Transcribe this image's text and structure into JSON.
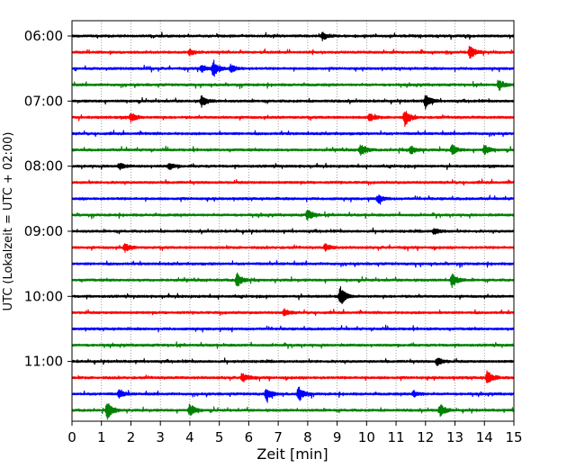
{
  "chart_data": {
    "type": "line",
    "title": "",
    "xlabel": "Zeit  [min]",
    "ylabel": "UTC (Lokalzeit = UTC + 02:00)",
    "xlim": [
      0,
      15
    ],
    "x_ticks": [
      "0",
      "1",
      "2",
      "3",
      "4",
      "5",
      "6",
      "7",
      "8",
      "9",
      "10",
      "11",
      "12",
      "13",
      "14",
      "15"
    ],
    "y_tick_labels": [
      "06:00",
      "07:00",
      "08:00",
      "09:00",
      "10:00",
      "11:00"
    ],
    "start_time": "06:00",
    "end_time": "12:00",
    "trace_interval_minutes": 15,
    "grid": "vertical dotted at each minute",
    "trace_color_cycle": [
      "#000000",
      "#ff0000",
      "#0000ff",
      "#008000"
    ],
    "traces": [
      {
        "time": "06:00",
        "color": "black",
        "events": [
          {
            "t": 8.5,
            "amp": 0.5
          }
        ]
      },
      {
        "time": "06:15",
        "color": "red",
        "events": [
          {
            "t": 4.0,
            "amp": 0.3
          },
          {
            "t": 13.5,
            "amp": 0.9
          }
        ]
      },
      {
        "time": "06:30",
        "color": "blue",
        "events": [
          {
            "t": 4.4,
            "amp": 0.5
          },
          {
            "t": 4.8,
            "amp": 1.0
          },
          {
            "t": 5.4,
            "amp": 0.5
          }
        ]
      },
      {
        "time": "06:45",
        "color": "green",
        "events": [
          {
            "t": 14.5,
            "amp": 0.6
          }
        ]
      },
      {
        "time": "07:00",
        "color": "black",
        "events": [
          {
            "t": 4.4,
            "amp": 0.7
          },
          {
            "t": 12.0,
            "amp": 0.9
          }
        ]
      },
      {
        "time": "07:15",
        "color": "red",
        "events": [
          {
            "t": 2.0,
            "amp": 0.6
          },
          {
            "t": 10.1,
            "amp": 0.5
          },
          {
            "t": 11.3,
            "amp": 1.0
          }
        ]
      },
      {
        "time": "07:30",
        "color": "blue",
        "events": []
      },
      {
        "time": "07:45",
        "color": "green",
        "events": [
          {
            "t": 9.8,
            "amp": 0.8
          },
          {
            "t": 11.5,
            "amp": 0.5
          },
          {
            "t": 12.9,
            "amp": 0.6
          },
          {
            "t": 14.0,
            "amp": 0.6
          }
        ]
      },
      {
        "time": "08:00",
        "color": "black",
        "events": [
          {
            "t": 1.6,
            "amp": 0.4
          },
          {
            "t": 3.3,
            "amp": 0.4
          }
        ]
      },
      {
        "time": "08:15",
        "color": "red",
        "events": []
      },
      {
        "time": "08:30",
        "color": "blue",
        "events": [
          {
            "t": 10.4,
            "amp": 0.5
          }
        ]
      },
      {
        "time": "08:45",
        "color": "green",
        "events": [
          {
            "t": 8.0,
            "amp": 0.7
          }
        ]
      },
      {
        "time": "09:00",
        "color": "black",
        "events": [
          {
            "t": 12.3,
            "amp": 0.4
          }
        ]
      },
      {
        "time": "09:15",
        "color": "red",
        "events": [
          {
            "t": 1.8,
            "amp": 0.5
          },
          {
            "t": 8.6,
            "amp": 0.4
          }
        ]
      },
      {
        "time": "09:30",
        "color": "blue",
        "events": []
      },
      {
        "time": "09:45",
        "color": "green",
        "events": [
          {
            "t": 5.6,
            "amp": 0.9
          },
          {
            "t": 12.9,
            "amp": 0.9
          }
        ]
      },
      {
        "time": "10:00",
        "color": "black",
        "events": [
          {
            "t": 9.1,
            "amp": 1.2
          }
        ]
      },
      {
        "time": "10:15",
        "color": "red",
        "events": [
          {
            "t": 7.2,
            "amp": 0.4
          }
        ]
      },
      {
        "time": "10:30",
        "color": "blue",
        "events": []
      },
      {
        "time": "10:45",
        "color": "green",
        "events": []
      },
      {
        "time": "11:00",
        "color": "black",
        "events": [
          {
            "t": 12.4,
            "amp": 0.5
          }
        ]
      },
      {
        "time": "11:15",
        "color": "red",
        "events": [
          {
            "t": 5.8,
            "amp": 0.6
          },
          {
            "t": 14.1,
            "amp": 0.9
          }
        ]
      },
      {
        "time": "11:30",
        "color": "blue",
        "events": [
          {
            "t": 1.6,
            "amp": 0.5
          },
          {
            "t": 6.6,
            "amp": 0.8
          },
          {
            "t": 7.7,
            "amp": 0.9
          },
          {
            "t": 11.6,
            "amp": 0.4
          }
        ]
      },
      {
        "time": "11:45",
        "color": "green",
        "events": [
          {
            "t": 1.2,
            "amp": 1.1
          },
          {
            "t": 4.0,
            "amp": 0.8
          },
          {
            "t": 12.5,
            "amp": 0.8
          }
        ]
      }
    ]
  }
}
